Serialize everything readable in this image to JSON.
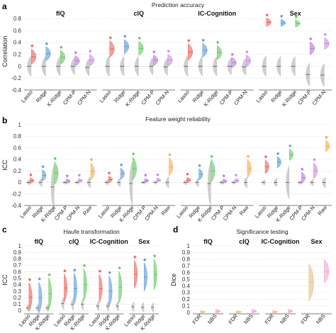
{
  "figure": {
    "panel_letters": [
      "a",
      "b",
      "c",
      "d"
    ],
    "colors": {
      "Lasso": "#e8504a",
      "Ridge": "#4a8fd6",
      "K-Ridge": "#4fc24f",
      "CPM-P": "#b06ad8",
      "CPM-N": "#c07fe0",
      "Raw": "#f0a43a",
      "FDR": "#e0b87a",
      "NBS": "#f39ccc",
      "null": "#bdbdbd",
      "grid": "#d9d9d9"
    }
  },
  "chart_data": [
    {
      "id": "a",
      "type": "violin",
      "title": "Prediction accuracy",
      "ylabel": "Correlation",
      "ylim": [
        -0.4,
        0.9
      ],
      "yticks": [
        -0.4,
        -0.2,
        0,
        0.2,
        0.4,
        0.6,
        0.8
      ],
      "ytick_labels": [
        "-0.4",
        "-0.2",
        "0",
        "0.2",
        "0.4",
        "0.6",
        "0.8"
      ],
      "categories": [
        "Lasso",
        "Ridge",
        "K-Ridge",
        "CPM-P",
        "CPM-N"
      ],
      "groups": [
        {
          "name": "fIQ",
          "obs_mean": [
            0.16,
            0.21,
            0.15,
            0.09,
            0.1
          ],
          "obs_spread": [
            0.13,
            0.12,
            0.12,
            0.09,
            0.1
          ],
          "null_mean": [
            0.0,
            0.0,
            0.0,
            0.0,
            -0.02
          ],
          "null_spread": [
            0.18,
            0.17,
            0.17,
            0.15,
            0.15
          ],
          "sig": [
            true,
            true,
            true,
            true,
            true
          ]
        },
        {
          "name": "cIQ",
          "obs_mean": [
            0.29,
            0.33,
            0.3,
            0.1,
            0.1
          ],
          "obs_spread": [
            0.14,
            0.12,
            0.12,
            0.09,
            0.1
          ],
          "null_mean": [
            0.0,
            0.0,
            0.0,
            0.0,
            -0.01
          ],
          "null_spread": [
            0.18,
            0.17,
            0.17,
            0.15,
            0.15
          ],
          "sig": [
            true,
            true,
            true,
            true,
            true
          ]
        },
        {
          "name": "IC-Cognition",
          "obs_mean": [
            0.24,
            0.27,
            0.23,
            0.06,
            0.09
          ],
          "obs_spread": [
            0.14,
            0.12,
            0.12,
            0.09,
            0.1
          ],
          "null_mean": [
            0.0,
            0.0,
            0.0,
            0.0,
            -0.01
          ],
          "null_spread": [
            0.18,
            0.17,
            0.17,
            0.15,
            0.15
          ],
          "sig": [
            true,
            true,
            true,
            true,
            true
          ]
        },
        {
          "name": "Sex",
          "obs_mean": [
            0.74,
            0.73,
            0.72,
            0.3,
            0.38
          ],
          "obs_spread": [
            0.07,
            0.06,
            0.06,
            0.11,
            0.1
          ],
          "null_mean": [
            0.0,
            0.0,
            0.0,
            -0.14,
            -0.15
          ],
          "null_spread": [
            0.18,
            0.17,
            0.17,
            0.2,
            0.2
          ],
          "sig": [
            true,
            true,
            true,
            true,
            true
          ]
        }
      ]
    },
    {
      "id": "b",
      "type": "violin",
      "title": "Feature weight reliability",
      "ylabel": "ICC",
      "ylim": [
        -0.4,
        1.0
      ],
      "yticks": [
        -0.4,
        -0.2,
        0,
        0.2,
        0.4,
        0.6,
        0.8,
        1
      ],
      "ytick_labels": [
        "-0.4",
        "-0.2",
        "0",
        "0.2",
        "0.4",
        "0.6",
        "0.8",
        "1"
      ],
      "categories": [
        "Lasso",
        "Ridge",
        "K-Ridge",
        "CPM-P",
        "CPM-N",
        "Raw"
      ],
      "groups": [
        {
          "name": "fIQ",
          "obs_mean": [
            0.03,
            0.12,
            0.16,
            0.02,
            0.03,
            0.19
          ],
          "obs_spread": [
            0.05,
            0.1,
            0.2,
            0.04,
            0.04,
            0.15
          ],
          "null_mean": [
            0.0,
            0.0,
            -0.08,
            0.0,
            0.0,
            0.0
          ],
          "null_spread": [
            0.05,
            0.08,
            0.4,
            0.04,
            0.04,
            0.1
          ],
          "sig": [
            true,
            true,
            true,
            true,
            true,
            true
          ]
        },
        {
          "name": "cIQ",
          "obs_mean": [
            0.05,
            0.15,
            0.24,
            0.03,
            0.04,
            0.27
          ],
          "obs_spread": [
            0.06,
            0.1,
            0.2,
            0.04,
            0.04,
            0.16
          ],
          "null_mean": [
            0.0,
            0.0,
            -0.02,
            0.0,
            0.0,
            0.0
          ],
          "null_spread": [
            0.05,
            0.08,
            0.4,
            0.04,
            0.04,
            0.1
          ],
          "sig": [
            true,
            true,
            true,
            true,
            true,
            true
          ]
        },
        {
          "name": "IC-Cognition",
          "obs_mean": [
            0.04,
            0.14,
            0.2,
            0.02,
            0.03,
            0.24
          ],
          "obs_spread": [
            0.05,
            0.1,
            0.2,
            0.04,
            0.04,
            0.16
          ],
          "null_mean": [
            0.0,
            0.0,
            -0.02,
            0.0,
            0.0,
            0.0
          ],
          "null_spread": [
            0.05,
            0.08,
            0.4,
            0.04,
            0.04,
            0.1
          ],
          "sig": [
            true,
            true,
            true,
            true,
            true,
            true
          ]
        },
        {
          "name": "Sex",
          "obs_mean": [
            0.27,
            0.35,
            0.48,
            0.08,
            0.2,
            0.63
          ],
          "obs_spread": [
            0.12,
            0.1,
            0.1,
            0.1,
            0.14,
            0.1
          ],
          "null_mean": [
            0.0,
            0.0,
            0.0,
            0.0,
            0.0,
            0.0
          ],
          "null_spread": [
            0.05,
            0.08,
            0.3,
            0.04,
            0.06,
            0.1
          ],
          "sig": [
            true,
            true,
            true,
            true,
            true,
            true
          ]
        }
      ]
    },
    {
      "id": "c",
      "type": "violin",
      "title": "Haufe transformation",
      "ylabel": "ICC",
      "ylim": [
        -0.05,
        1.0
      ],
      "yticks": [
        0,
        0.1,
        0.2,
        0.3,
        0.4,
        0.5,
        0.6,
        0.7,
        0.8,
        0.9,
        1
      ],
      "ytick_labels": [
        "0",
        "0.1",
        "0.2",
        "0.3",
        "0.4",
        "0.5",
        "0.6",
        "0.7",
        "0.8",
        "0.9",
        "1"
      ],
      "categories": [
        "Lasso",
        "Ridge",
        "K-Ridge"
      ],
      "groups": [
        {
          "name": "fIQ",
          "obs_mean": [
            0.21,
            0.2,
            0.26
          ],
          "obs_spread": [
            0.22,
            0.24,
            0.25
          ],
          "null_mean": [
            0.04,
            0.04,
            0.04
          ],
          "null_spread": [
            0.06,
            0.06,
            0.06
          ],
          "sig": [
            true,
            true,
            true
          ]
        },
        {
          "name": "cIQ",
          "obs_mean": [
            0.35,
            0.34,
            0.4
          ],
          "obs_spread": [
            0.22,
            0.24,
            0.25
          ],
          "null_mean": [
            0.11,
            0.1,
            0.1
          ],
          "null_spread": [
            0.1,
            0.1,
            0.1
          ],
          "sig": [
            true,
            true,
            true
          ]
        },
        {
          "name": "IC-Cognition",
          "obs_mean": [
            0.34,
            0.3,
            0.36
          ],
          "obs_spread": [
            0.22,
            0.24,
            0.25
          ],
          "null_mean": [
            0.07,
            0.07,
            0.07
          ],
          "null_spread": [
            0.08,
            0.08,
            0.08
          ],
          "sig": [
            true,
            true,
            true
          ]
        },
        {
          "name": "Sex",
          "obs_mean": [
            0.56,
            0.52,
            0.56
          ],
          "obs_spread": [
            0.22,
            0.22,
            0.24
          ],
          "null_mean": [
            0.06,
            0.05,
            0.05
          ],
          "null_spread": [
            0.08,
            0.08,
            0.08
          ],
          "sig": [
            true,
            true,
            true
          ]
        }
      ]
    },
    {
      "id": "d",
      "type": "violin",
      "title": "Significance testing",
      "ylabel": "Dice",
      "ylim": [
        -0.02,
        1.0
      ],
      "yticks": [
        0,
        0.1,
        0.2,
        0.3,
        0.4,
        0.5,
        0.6,
        0.7,
        0.8,
        0.9,
        1
      ],
      "ytick_labels": [
        "0",
        "0.1",
        "0.2",
        "0.3",
        "0.4",
        "0.5",
        "0.6",
        "0.7",
        "0.8",
        "0.9",
        "1"
      ],
      "categories": [
        "FDR",
        "NBS"
      ],
      "groups": [
        {
          "name": "fIQ",
          "obs_mean": [
            0.01,
            0.02
          ],
          "obs_spread": [
            0.02,
            0.03
          ],
          "null_mean": [
            null,
            null
          ],
          "null_spread": [
            0,
            0
          ],
          "sig": [
            false,
            false
          ]
        },
        {
          "name": "cIQ",
          "obs_mean": [
            0.01,
            0.02
          ],
          "obs_spread": [
            0.02,
            0.03
          ],
          "null_mean": [
            null,
            null
          ],
          "null_spread": [
            0,
            0
          ],
          "sig": [
            false,
            false
          ]
        },
        {
          "name": "IC-Cognition",
          "obs_mean": [
            0.01,
            0.02
          ],
          "obs_spread": [
            0.02,
            0.03
          ],
          "null_mean": [
            null,
            null
          ],
          "null_spread": [
            0,
            0
          ],
          "sig": [
            false,
            false
          ]
        },
        {
          "name": "Sex",
          "obs_mean": [
            0.45,
            0.62
          ],
          "obs_spread": [
            0.28,
            0.18
          ],
          "null_mean": [
            null,
            null
          ],
          "null_spread": [
            0,
            0
          ],
          "sig": [
            false,
            false
          ]
        }
      ]
    }
  ]
}
